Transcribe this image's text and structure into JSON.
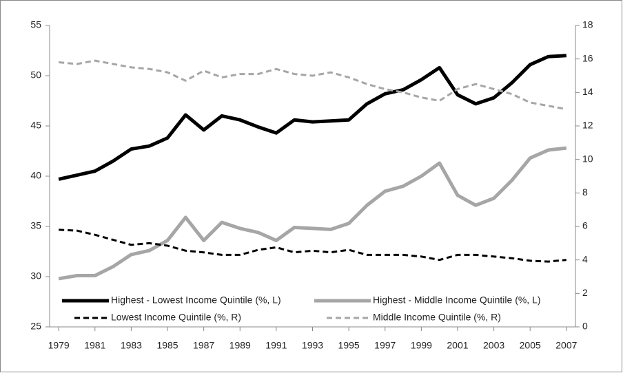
{
  "chart_data": {
    "type": "line",
    "x": [
      1979,
      1980,
      1981,
      1982,
      1983,
      1984,
      1985,
      1986,
      1987,
      1988,
      1989,
      1990,
      1991,
      1992,
      1993,
      1994,
      1995,
      1996,
      1997,
      1998,
      1999,
      2000,
      2001,
      2002,
      2003,
      2004,
      2005,
      2006,
      2007
    ],
    "xlim": [
      1978.5,
      2007.5
    ],
    "xticks": [
      1979,
      1981,
      1983,
      1985,
      1987,
      1989,
      1991,
      1993,
      1995,
      1997,
      1999,
      2001,
      2003,
      2005,
      2007
    ],
    "ylim": [
      25,
      55
    ],
    "yticks": [
      25,
      30,
      35,
      40,
      45,
      50,
      55
    ],
    "y2lim": [
      0,
      18
    ],
    "y2ticks": [
      0,
      2,
      4,
      6,
      8,
      10,
      12,
      14,
      16,
      18
    ],
    "legend": "bottom",
    "series": [
      {
        "name": "Highest - Lowest Income Quintile (%, L)",
        "color": "#000000",
        "dash": "solid",
        "axis": "y",
        "values": [
          39.7,
          40.1,
          40.5,
          41.5,
          42.7,
          43.0,
          43.8,
          46.1,
          44.6,
          46.0,
          45.6,
          44.9,
          44.3,
          45.6,
          45.4,
          45.5,
          45.6,
          47.2,
          48.2,
          48.6,
          49.6,
          50.8,
          48.1,
          47.2,
          47.8,
          49.3,
          51.1,
          51.9,
          52.0
        ]
      },
      {
        "name": "Highest - Middle Income Quintile (%, L)",
        "color": "#a6a6a6",
        "dash": "solid",
        "axis": "y",
        "values": [
          29.8,
          30.1,
          30.1,
          31.0,
          32.2,
          32.6,
          33.6,
          35.9,
          33.6,
          35.4,
          34.8,
          34.4,
          33.6,
          34.9,
          34.8,
          34.7,
          35.3,
          37.1,
          38.5,
          39.0,
          40.0,
          41.3,
          38.1,
          37.1,
          37.8,
          39.6,
          41.8,
          42.6,
          42.8
        ]
      },
      {
        "name": "Lowest Income Quintile (%, R)",
        "color": "#000000",
        "dash": "dashed",
        "axis": "y2",
        "values": [
          5.8,
          5.75,
          5.5,
          5.2,
          4.9,
          5.0,
          4.85,
          4.55,
          4.45,
          4.3,
          4.3,
          4.6,
          4.75,
          4.45,
          4.55,
          4.45,
          4.6,
          4.3,
          4.3,
          4.3,
          4.2,
          4.0,
          4.3,
          4.3,
          4.2,
          4.1,
          3.95,
          3.9,
          4.0
        ]
      },
      {
        "name": "Middle Income Quintile (%, R)",
        "color": "#a6a6a6",
        "dash": "dashed",
        "axis": "y2",
        "values": [
          15.8,
          15.7,
          15.9,
          15.7,
          15.5,
          15.4,
          15.2,
          14.7,
          15.3,
          14.9,
          15.1,
          15.1,
          15.4,
          15.1,
          15.0,
          15.2,
          14.9,
          14.5,
          14.2,
          14.0,
          13.7,
          13.5,
          14.2,
          14.5,
          14.2,
          13.9,
          13.4,
          13.2,
          13.0
        ]
      }
    ]
  }
}
